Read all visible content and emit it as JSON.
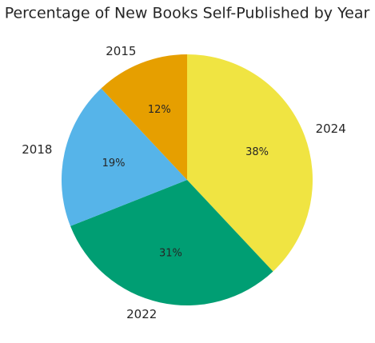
{
  "chart_data": {
    "type": "pie",
    "title": "Percentage of New Books Self-Published by Year",
    "categories": [
      "2024",
      "2022",
      "2018",
      "2015"
    ],
    "values": [
      38,
      31,
      19,
      12
    ],
    "value_labels": [
      "38%",
      "31%",
      "19%",
      "12%"
    ],
    "colors": [
      "#f0e442",
      "#009e73",
      "#56b4e9",
      "#e69f00"
    ]
  }
}
